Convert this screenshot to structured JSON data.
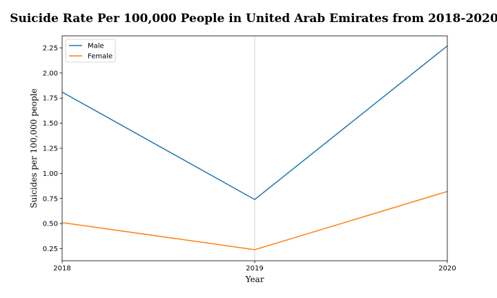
{
  "chart_data": {
    "type": "line",
    "title": "Suicide Rate Per 100,000 People in United Arab Emirates from 2018-2020",
    "xlabel": "Year",
    "ylabel": "Suicides per 100,000 people",
    "x": [
      2018,
      2019,
      2020
    ],
    "x_tick_labels": [
      "2018",
      "2019",
      "2020"
    ],
    "xlim": [
      2018,
      2020
    ],
    "ylim": [
      0.13,
      2.37
    ],
    "y_ticks": [
      0.25,
      0.5,
      0.75,
      1.0,
      1.25,
      1.5,
      1.75,
      2.0,
      2.25
    ],
    "y_tick_labels": [
      "0.25",
      "0.50",
      "0.75",
      "1.00",
      "1.25",
      "1.50",
      "1.75",
      "2.00",
      "2.25"
    ],
    "grid": "vertical line at 2019 only",
    "legend_position": "upper-left",
    "series": [
      {
        "name": "Male",
        "color": "#1f77b4",
        "values": [
          1.81,
          0.74,
          2.27
        ]
      },
      {
        "name": "Female",
        "color": "#ff7f0e",
        "values": [
          0.51,
          0.24,
          0.82
        ]
      }
    ]
  }
}
